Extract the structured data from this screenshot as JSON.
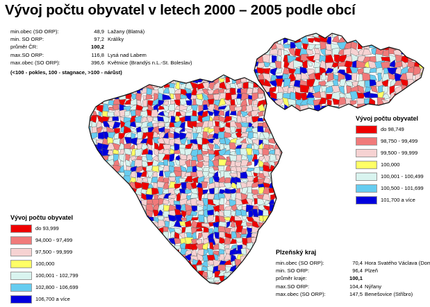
{
  "title": "Vývoj počtu obyvatel v letech 2000 – 2005 podle obcí",
  "national_stats": {
    "rows": [
      {
        "label": "min.obec (SO ORP):",
        "value": "48,9",
        "place": "Lažany (Blatná)",
        "bold": false
      },
      {
        "label": "min. SO ORP:",
        "value": "97,2",
        "place": "Králíky",
        "bold": false
      },
      {
        "label": "průměr ČR:",
        "value": "100,2",
        "place": "",
        "bold": true
      },
      {
        "label": "max.SO ORP:",
        "value": "116,8",
        "place": "Lysá nad Labem",
        "bold": false
      },
      {
        "label": "max.obec (SO ORP):",
        "value": "396,6",
        "place": "Květnice (Brandýs n.L.-St. Boleslav)",
        "bold": false
      }
    ],
    "note": "(<100 - pokles, 100 - stagnace, >100 - nárůst)"
  },
  "legend_national": {
    "title": "Vývoj počtu obyvatel",
    "items": [
      {
        "label": "do 98,749",
        "color": "#ee0000"
      },
      {
        "label": "98,750 -   99,499",
        "color": "#f07a7a"
      },
      {
        "label": "99,500 -   99,999",
        "color": "#f6d2d2"
      },
      {
        "label": "100,000",
        "color": "#ffff66"
      },
      {
        "label": "100,001 - 100,499",
        "color": "#d9f4ef"
      },
      {
        "label": "100,500 - 101,699",
        "color": "#66ccf0"
      },
      {
        "label": "101,700 a více",
        "color": "#0000dd"
      }
    ]
  },
  "legend_regional": {
    "title": "Vývoj počtu obyvatel",
    "items": [
      {
        "label": "do 93,999",
        "color": "#ee0000"
      },
      {
        "label": "94,000 -   97,499",
        "color": "#f07a7a"
      },
      {
        "label": "97,500 -   99,999",
        "color": "#f6d2d2"
      },
      {
        "label": "100,000",
        "color": "#ffff66"
      },
      {
        "label": "100,001 - 102,799",
        "color": "#d9f4ef"
      },
      {
        "label": "102,800 - 106,699",
        "color": "#66ccf0"
      },
      {
        "label": "106,700 a více",
        "color": "#0000dd"
      }
    ]
  },
  "regional_stats": {
    "title": "Plzeňský kraj",
    "rows": [
      {
        "label": "min.obec (SO ORP):",
        "value": "70,4",
        "place": "Hora Svatého Václava (Domažlice)",
        "bold": false
      },
      {
        "label": "min. SO ORP:",
        "value": "96,4",
        "place": "Plzeň",
        "bold": false
      },
      {
        "label": "průměr kraje:",
        "value": "100,1",
        "place": "",
        "bold": true
      },
      {
        "label": "max.SO ORP:",
        "value": "104,4",
        "place": "Nýřany",
        "bold": false
      },
      {
        "label": "max.obec (SO ORP):",
        "value": "147,5",
        "place": "Benešovice (Stříbro)",
        "bold": false
      }
    ]
  },
  "map_colors": [
    "#ee0000",
    "#f07a7a",
    "#f6d2d2",
    "#ffff66",
    "#d9f4ef",
    "#66ccf0",
    "#0000dd"
  ]
}
